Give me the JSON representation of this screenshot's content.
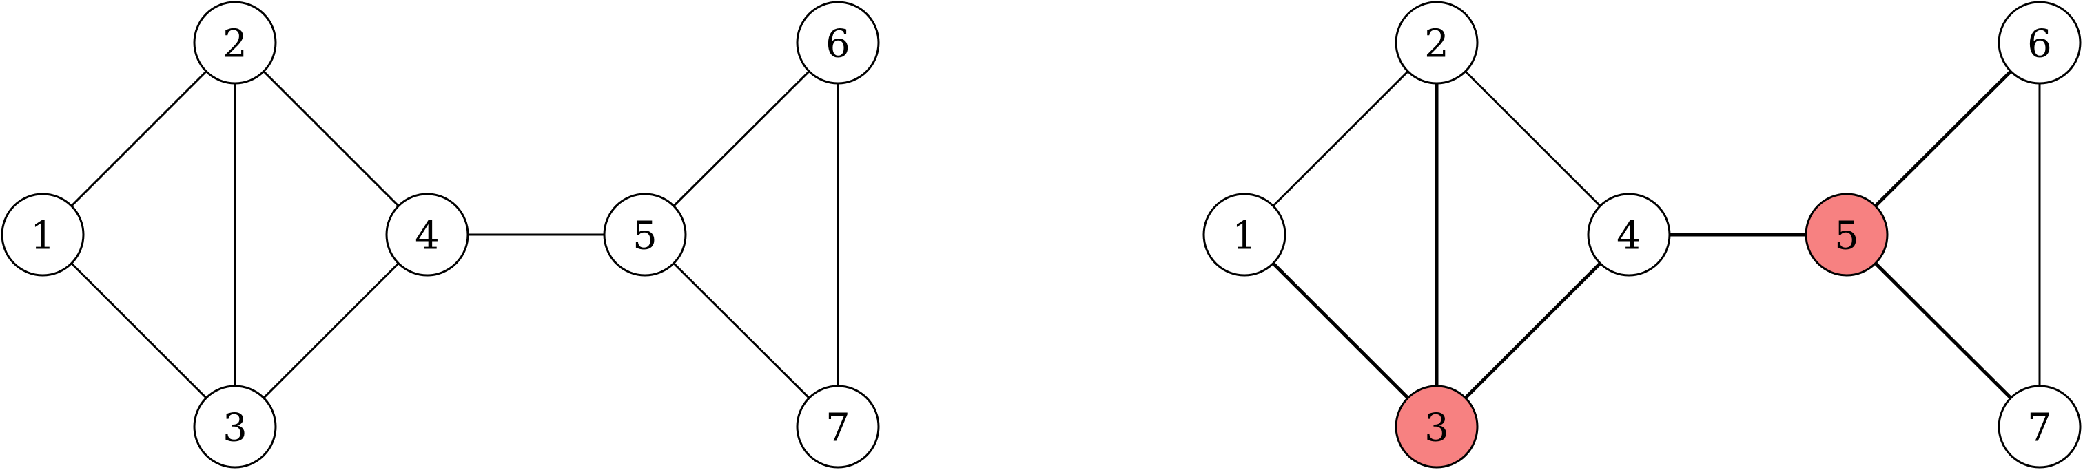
{
  "colors": {
    "background": "#ffffff",
    "line": "#000000",
    "node_fill": "#ffffff",
    "highlight": "#f78181"
  },
  "graphs": [
    {
      "name": "left-graph",
      "nodes": [
        {
          "id": "1",
          "label": "1",
          "highlighted": false
        },
        {
          "id": "2",
          "label": "2",
          "highlighted": false
        },
        {
          "id": "3",
          "label": "3",
          "highlighted": false
        },
        {
          "id": "4",
          "label": "4",
          "highlighted": false
        },
        {
          "id": "5",
          "label": "5",
          "highlighted": false
        },
        {
          "id": "6",
          "label": "6",
          "highlighted": false
        },
        {
          "id": "7",
          "label": "7",
          "highlighted": false
        }
      ],
      "edges": [
        {
          "from": "1",
          "to": "2",
          "highlighted": false
        },
        {
          "from": "1",
          "to": "3",
          "highlighted": false
        },
        {
          "from": "2",
          "to": "3",
          "highlighted": false
        },
        {
          "from": "2",
          "to": "4",
          "highlighted": false
        },
        {
          "from": "3",
          "to": "4",
          "highlighted": false
        },
        {
          "from": "4",
          "to": "5",
          "highlighted": false
        },
        {
          "from": "5",
          "to": "6",
          "highlighted": false
        },
        {
          "from": "5",
          "to": "7",
          "highlighted": false
        },
        {
          "from": "6",
          "to": "7",
          "highlighted": false
        }
      ]
    },
    {
      "name": "right-graph",
      "nodes": [
        {
          "id": "1",
          "label": "1",
          "highlighted": false
        },
        {
          "id": "2",
          "label": "2",
          "highlighted": false
        },
        {
          "id": "3",
          "label": "3",
          "highlighted": true
        },
        {
          "id": "4",
          "label": "4",
          "highlighted": false
        },
        {
          "id": "5",
          "label": "5",
          "highlighted": true
        },
        {
          "id": "6",
          "label": "6",
          "highlighted": false
        },
        {
          "id": "7",
          "label": "7",
          "highlighted": false
        }
      ],
      "edges": [
        {
          "from": "1",
          "to": "2",
          "highlighted": false
        },
        {
          "from": "1",
          "to": "3",
          "highlighted": true
        },
        {
          "from": "2",
          "to": "3",
          "highlighted": true
        },
        {
          "from": "2",
          "to": "4",
          "highlighted": false
        },
        {
          "from": "3",
          "to": "4",
          "highlighted": true
        },
        {
          "from": "4",
          "to": "5",
          "highlighted": true
        },
        {
          "from": "5",
          "to": "6",
          "highlighted": true
        },
        {
          "from": "5",
          "to": "7",
          "highlighted": true
        },
        {
          "from": "6",
          "to": "7",
          "highlighted": false
        }
      ]
    }
  ]
}
